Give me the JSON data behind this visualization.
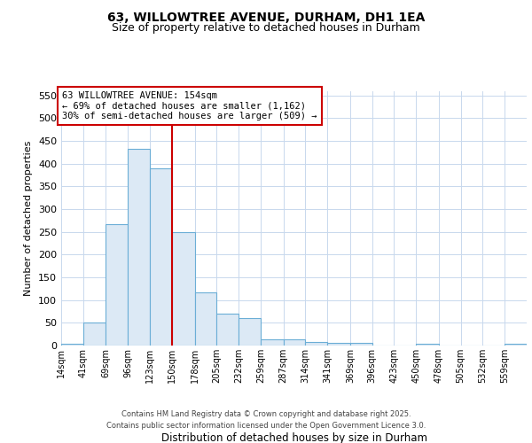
{
  "title1": "63, WILLOWTREE AVENUE, DURHAM, DH1 1EA",
  "title2": "Size of property relative to detached houses in Durham",
  "xlabel": "Distribution of detached houses by size in Durham",
  "ylabel": "Number of detached properties",
  "bins": [
    14,
    41,
    69,
    96,
    123,
    150,
    178,
    205,
    232,
    259,
    287,
    314,
    341,
    369,
    396,
    423,
    450,
    478,
    505,
    532,
    559
  ],
  "values": [
    3,
    50,
    267,
    433,
    390,
    250,
    117,
    70,
    60,
    13,
    13,
    8,
    6,
    5,
    0,
    0,
    4,
    0,
    0,
    0,
    4
  ],
  "bar_color": "#dce9f5",
  "bar_edge_color": "#6baed6",
  "grid_color": "#c8d8ed",
  "background_color": "#ffffff",
  "fig_background_color": "#ffffff",
  "vline_x": 150,
  "vline_color": "#cc0000",
  "annotation_text": "63 WILLOWTREE AVENUE: 154sqm\n← 69% of detached houses are smaller (1,162)\n30% of semi-detached houses are larger (509) →",
  "annotation_box_facecolor": "#ffffff",
  "annotation_box_edgecolor": "#cc0000",
  "ylim": [
    0,
    560
  ],
  "yticks": [
    0,
    50,
    100,
    150,
    200,
    250,
    300,
    350,
    400,
    450,
    500,
    550
  ],
  "footer1": "Contains HM Land Registry data © Crown copyright and database right 2025.",
  "footer2": "Contains public sector information licensed under the Open Government Licence 3.0."
}
